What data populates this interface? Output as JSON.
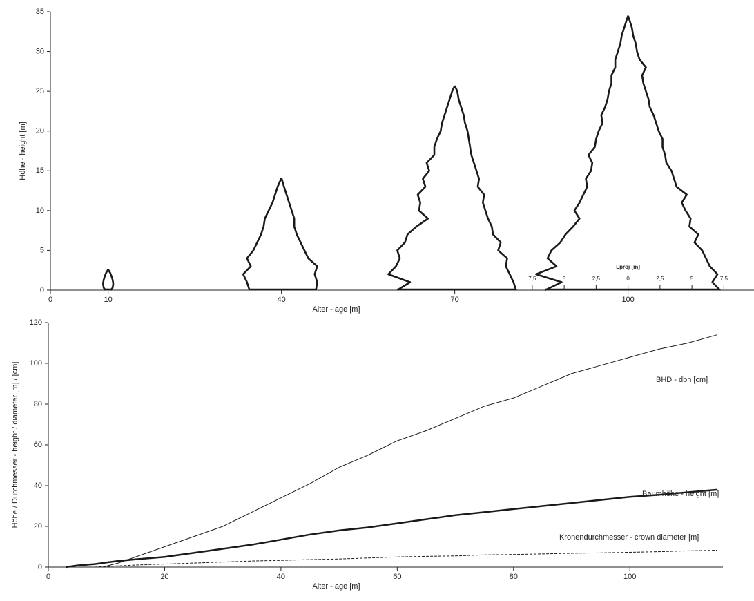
{
  "chart_data": [
    {
      "type": "crown",
      "ylabel": "Höhe - height  [m]",
      "xlabel": "Alter - age  [m]",
      "xlim": [
        0,
        121.8
      ],
      "ylim": [
        0,
        35
      ],
      "xticks": [
        0,
        10,
        40,
        70,
        100
      ],
      "yticks": [
        0,
        5,
        10,
        15,
        20,
        25,
        30,
        35
      ],
      "color": "#1a1a1a",
      "inset_axis": {
        "label": "Lproj [m]",
        "ticks": [
          {
            "value": -7.5,
            "label": "7,5"
          },
          {
            "value": -5,
            "label": "5"
          },
          {
            "value": -2.5,
            "label": "2,5"
          },
          0,
          {
            "value": 2.5,
            "label": "2,5"
          },
          5,
          {
            "value": 7.5,
            "label": "7,5"
          }
        ]
      },
      "trees": [
        {
          "age": 10,
          "heights": [
            0,
            0.3,
            0.8,
            1.3,
            1.8,
            2.2,
            2.6
          ],
          "left": [
            0.2,
            0.35,
            0.4,
            0.35,
            0.25,
            0.15,
            0
          ],
          "right": [
            0.2,
            0.35,
            0.4,
            0.35,
            0.25,
            0.15,
            0
          ]
        },
        {
          "age": 40,
          "heights": [
            0,
            1,
            2,
            3,
            4,
            5,
            6,
            7,
            8,
            9,
            10,
            11,
            12,
            13,
            14.1
          ],
          "left": [
            2.5,
            2.7,
            3.0,
            2.4,
            2.7,
            2.2,
            1.9,
            1.6,
            1.4,
            1.3,
            1.0,
            0.7,
            0.5,
            0.3,
            0
          ],
          "right": [
            2.7,
            2.8,
            2.6,
            2.8,
            2.1,
            1.8,
            1.5,
            1.2,
            1.0,
            1.0,
            0.8,
            0.6,
            0.4,
            0.2,
            0
          ]
        },
        {
          "age": 70,
          "heights": [
            0,
            1,
            2,
            3,
            4,
            5,
            6,
            7,
            8,
            9,
            10,
            11,
            12,
            13,
            14,
            15,
            16,
            17,
            18,
            19,
            20,
            21,
            22,
            23,
            24,
            25,
            25.7
          ],
          "left": [
            4.5,
            3.5,
            5.2,
            4.6,
            4.3,
            4.5,
            3.9,
            3.7,
            3.0,
            2.1,
            2.8,
            2.7,
            2.9,
            2.3,
            2.5,
            2.0,
            2.2,
            1.6,
            1.6,
            1.4,
            1.1,
            1.0,
            0.8,
            0.6,
            0.4,
            0.2,
            0
          ],
          "right": [
            4.8,
            4.6,
            4.3,
            4.0,
            4.1,
            3.4,
            3.6,
            3.0,
            2.9,
            2.6,
            2.4,
            2.2,
            2.3,
            1.8,
            1.9,
            1.7,
            1.5,
            1.3,
            1.2,
            1.1,
            1.0,
            0.8,
            0.7,
            0.5,
            0.3,
            0.2,
            0
          ]
        },
        {
          "age": 100,
          "heights": [
            0,
            1,
            2,
            3,
            4,
            5,
            6,
            7,
            8,
            9,
            10,
            11,
            12,
            13,
            14,
            15,
            16,
            17,
            18,
            19,
            20,
            21,
            22,
            23,
            24,
            25,
            26,
            27,
            28,
            29,
            30,
            31,
            32,
            33,
            34.5
          ],
          "left": [
            6.5,
            5.2,
            7.2,
            5.6,
            6.3,
            6.0,
            5.3,
            4.9,
            4.3,
            3.8,
            4.2,
            3.8,
            3.5,
            3.2,
            3.3,
            2.9,
            2.8,
            3.1,
            2.6,
            2.5,
            2.3,
            2.0,
            2.1,
            1.8,
            1.6,
            1.5,
            1.3,
            1.3,
            1.0,
            1.0,
            0.8,
            0.6,
            0.5,
            0.3,
            0
          ],
          "right": [
            7.2,
            6.6,
            7.0,
            6.4,
            6.1,
            5.8,
            5.2,
            5.5,
            4.8,
            4.9,
            4.5,
            4.2,
            4.6,
            3.8,
            3.6,
            3.4,
            3.0,
            2.9,
            2.7,
            2.7,
            2.4,
            2.2,
            2.0,
            1.7,
            1.6,
            1.4,
            1.2,
            1.1,
            1.4,
            0.9,
            0.7,
            0.6,
            0.4,
            0.3,
            0
          ]
        }
      ]
    },
    {
      "type": "line",
      "ylabel": "Höhe / Durchmesser - height / diameter  [m] / [cm]",
      "xlabel": "Alter - age  [m]",
      "xlim": [
        0,
        116
      ],
      "ylim": [
        0,
        120
      ],
      "xticks": [
        0,
        20,
        40,
        60,
        80,
        100
      ],
      "yticks": [
        0,
        20,
        40,
        60,
        80,
        100,
        120
      ],
      "x": [
        3,
        5,
        8,
        10,
        12,
        15,
        20,
        25,
        30,
        35,
        40,
        45,
        50,
        55,
        60,
        65,
        70,
        75,
        80,
        85,
        90,
        95,
        100,
        105,
        110,
        115
      ],
      "series": [
        {
          "name": "BHD - dbh  [cm]",
          "color": "#1a1a1a",
          "line_width": 1,
          "dashed": false,
          "values": [
            null,
            null,
            null,
            0.5,
            2,
            5,
            10,
            15,
            20,
            27,
            34,
            41,
            49,
            55,
            62,
            67,
            73,
            79,
            83,
            89,
            95,
            99,
            103,
            107,
            110,
            114
          ]
        },
        {
          "name": "Baumhöhe - height [m]",
          "color": "#1a1a1a",
          "line_width": 2.5,
          "dashed": false,
          "values": [
            0,
            0.8,
            1.5,
            2.3,
            3,
            3.8,
            5,
            7,
            9,
            11,
            13.5,
            16,
            18,
            19.5,
            21.5,
            23.5,
            25.5,
            27,
            28.5,
            30,
            31.5,
            33,
            34.5,
            35.5,
            36.8,
            38
          ]
        },
        {
          "name": "Kronendurchmesser - crown diameter [m]",
          "color": "#1a1a1a",
          "line_width": 1,
          "dashed": true,
          "values": [
            null,
            null,
            0,
            0.3,
            0.6,
            1,
            1.5,
            2,
            2.5,
            3,
            3.3,
            3.7,
            4,
            4.5,
            5,
            5.3,
            5.5,
            6,
            6.2,
            6.5,
            6.8,
            7,
            7.3,
            7.6,
            8,
            8.3
          ]
        }
      ]
    }
  ]
}
